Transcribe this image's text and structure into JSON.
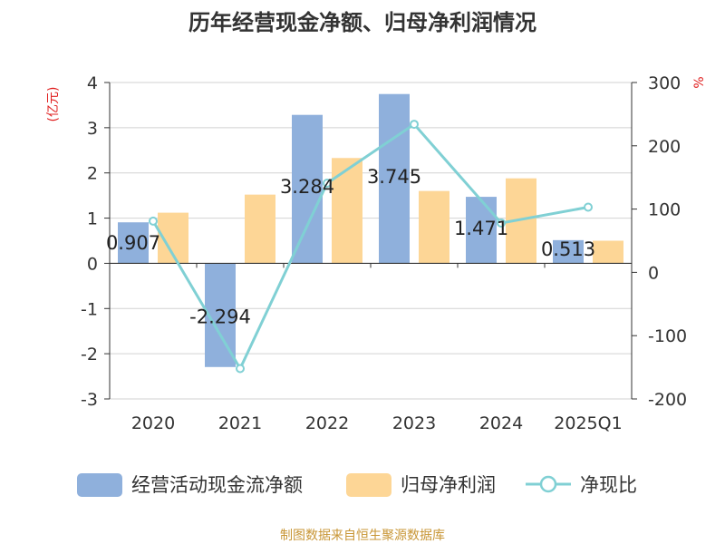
{
  "chart_data": {
    "type": "bar",
    "title": "历年经营现金净额、归母净利润情况",
    "left_axis_label": "(亿元)",
    "right_axis_label": "%",
    "categories": [
      "2020",
      "2021",
      "2022",
      "2023",
      "2024",
      "2025Q1"
    ],
    "ylim_left": [
      -3,
      4
    ],
    "yticks_left": [
      "4",
      "3",
      "2",
      "1",
      "0",
      "-1",
      "-2",
      "-3"
    ],
    "ylim_right": [
      -200,
      300
    ],
    "yticks_right": [
      "300",
      "200",
      "100",
      "0",
      "-100",
      "-200"
    ],
    "grid": true,
    "legend_position": "bottom",
    "series": [
      {
        "name": "经营活动现金流净额",
        "kind": "bar",
        "axis": "left",
        "color": "#8fb0dc",
        "values": [
          0.907,
          -2.294,
          3.284,
          3.745,
          1.471,
          0.513
        ],
        "labels": [
          "0.907",
          "-2.294",
          "3.284",
          "3.745",
          "1.471",
          "0.513"
        ]
      },
      {
        "name": "归母净利润",
        "kind": "bar",
        "axis": "left",
        "color": "#fdd696",
        "values": [
          1.12,
          1.52,
          2.33,
          1.6,
          1.88,
          0.5
        ]
      },
      {
        "name": "净现比",
        "kind": "line",
        "axis": "right",
        "color": "#80d0d4",
        "values": [
          81,
          -152,
          141,
          234,
          78,
          103
        ]
      }
    ],
    "source": "制图数据来自恒生聚源数据库"
  }
}
